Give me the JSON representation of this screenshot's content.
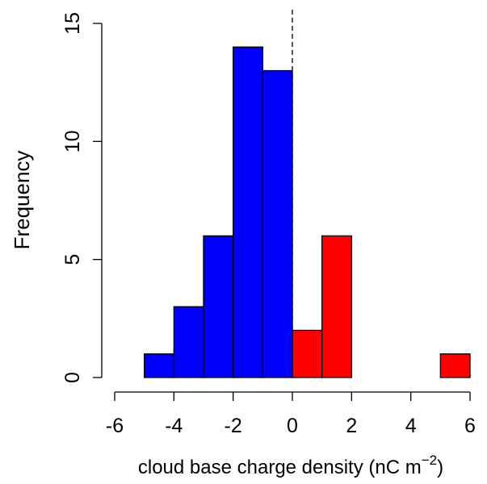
{
  "chart_data": {
    "type": "bar",
    "title": "",
    "xlabel": "cloud base charge density (nC m",
    "xlabel_superscript": "−2",
    "xlabel_suffix": ")",
    "ylabel": "Frequency",
    "xlim": [
      -6,
      6
    ],
    "ylim": [
      0,
      15
    ],
    "x_ticks": [
      -6,
      -4,
      -2,
      0,
      2,
      4,
      6
    ],
    "x_tick_labels": [
      "-6",
      "-4",
      "-2",
      "0",
      "2",
      "4",
      "6"
    ],
    "y_ticks": [
      0,
      5,
      10,
      15
    ],
    "y_tick_labels": [
      "0",
      "5",
      "10",
      "15"
    ],
    "grid": false,
    "reference_line": {
      "x": 0,
      "style": "dashed"
    },
    "colors": {
      "negative": "#0000ff",
      "positive": "#ff0000",
      "outline": "#000000"
    },
    "bins": [
      {
        "x0": -6,
        "x1": -5,
        "count": 0,
        "sign": "negative"
      },
      {
        "x0": -5,
        "x1": -4,
        "count": 1,
        "sign": "negative"
      },
      {
        "x0": -4,
        "x1": -3,
        "count": 3,
        "sign": "negative"
      },
      {
        "x0": -3,
        "x1": -2,
        "count": 6,
        "sign": "negative"
      },
      {
        "x0": -2,
        "x1": -1,
        "count": 14,
        "sign": "negative"
      },
      {
        "x0": -1,
        "x1": 0,
        "count": 13,
        "sign": "negative"
      },
      {
        "x0": 0,
        "x1": 1,
        "count": 2,
        "sign": "positive"
      },
      {
        "x0": 1,
        "x1": 2,
        "count": 6,
        "sign": "positive"
      },
      {
        "x0": 2,
        "x1": 3,
        "count": 0,
        "sign": "positive"
      },
      {
        "x0": 3,
        "x1": 4,
        "count": 0,
        "sign": "positive"
      },
      {
        "x0": 4,
        "x1": 5,
        "count": 0,
        "sign": "positive"
      },
      {
        "x0": 5,
        "x1": 6,
        "count": 1,
        "sign": "positive"
      }
    ]
  }
}
